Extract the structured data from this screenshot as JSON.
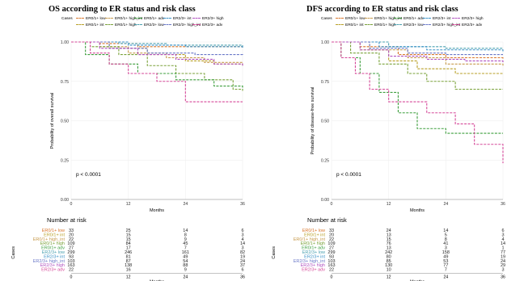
{
  "legend_prefix": "Cases",
  "groups": [
    {
      "name": "ER0/1+ low",
      "color": "#d9772c"
    },
    {
      "name": "ER0/1+ int",
      "color": "#b9a028"
    },
    {
      "name": "ER0/1+ high_int",
      "color": "#c79a4c"
    },
    {
      "name": "ER0/1+ high",
      "color": "#7aa23a"
    },
    {
      "name": "ER0/1+ adv",
      "color": "#3f9f3f"
    },
    {
      "name": "ER2/3+ low",
      "color": "#4aa0b0"
    },
    {
      "name": "ER2/3+ int",
      "color": "#3a92c8"
    },
    {
      "name": "ER2/3+ high_int",
      "color": "#6a78c8"
    },
    {
      "name": "ER2/3+ high",
      "color": "#b052c0"
    },
    {
      "name": "ER2/3+ adv",
      "color": "#d64a9a"
    }
  ],
  "chart_data": [
    {
      "type": "line",
      "title": "OS according to ER status and risk  class",
      "xlabel": "Months",
      "ylabel": "Probability of overall survival",
      "xlim": [
        0,
        36
      ],
      "ylim": [
        0,
        1
      ],
      "x_ticks": [
        "0",
        "12",
        "24",
        "36"
      ],
      "y_ticks": [
        "0.00",
        "0.25",
        "0.50",
        "0.75",
        "1.00"
      ],
      "annotation": "p < 0.0001",
      "legend_labels": [
        "ER0/1+ low",
        "ER0/1+ int",
        "ER0/1+ high_int",
        "ER0/1+ high",
        "ER0/1+ adv",
        "ER2/3+ low",
        "ER2/3+ int",
        "ER2/3+ high_int",
        "ER2/3+ high",
        "ER2/3+ adv"
      ],
      "series": [
        {
          "name": "ER0/1+ low",
          "x": [
            0,
            6,
            14,
            36
          ],
          "y": [
            1,
            0.99,
            0.97,
            0.96
          ]
        },
        {
          "name": "ER0/1+ int",
          "x": [
            0,
            8,
            16,
            24,
            30,
            36
          ],
          "y": [
            1,
            0.96,
            0.92,
            0.88,
            0.86,
            0.86
          ]
        },
        {
          "name": "ER0/1+ high_int",
          "x": [
            0,
            6,
            12,
            20,
            28,
            36
          ],
          "y": [
            1,
            0.97,
            0.93,
            0.9,
            0.87,
            0.85
          ]
        },
        {
          "name": "ER0/1+ high",
          "x": [
            0,
            4,
            10,
            16,
            22,
            28,
            34,
            36
          ],
          "y": [
            1,
            0.97,
            0.92,
            0.85,
            0.8,
            0.76,
            0.7,
            0.69
          ]
        },
        {
          "name": "ER0/1+ adv",
          "x": [
            0,
            3,
            8,
            14,
            22,
            30,
            36
          ],
          "y": [
            1,
            0.92,
            0.86,
            0.8,
            0.76,
            0.72,
            0.7
          ]
        },
        {
          "name": "ER2/3+ low",
          "x": [
            0,
            10,
            20,
            36
          ],
          "y": [
            1,
            0.99,
            0.98,
            0.97
          ]
        },
        {
          "name": "ER2/3+ int",
          "x": [
            0,
            12,
            24,
            36
          ],
          "y": [
            1,
            0.98,
            0.97,
            0.96
          ]
        },
        {
          "name": "ER2/3+ high_int",
          "x": [
            0,
            8,
            16,
            26,
            36
          ],
          "y": [
            1,
            0.96,
            0.93,
            0.92,
            0.91
          ]
        },
        {
          "name": "ER2/3+ high",
          "x": [
            0,
            6,
            14,
            22,
            30,
            36
          ],
          "y": [
            1,
            0.96,
            0.92,
            0.89,
            0.86,
            0.85
          ]
        },
        {
          "name": "ER2/3+ adv",
          "x": [
            0,
            4,
            8,
            12,
            18,
            24,
            36
          ],
          "y": [
            1,
            0.93,
            0.86,
            0.8,
            0.75,
            0.62,
            0.62
          ]
        }
      ],
      "number_at_risk": {
        "title": "Number at risk",
        "row_label": "Cases",
        "x": [
          0,
          12,
          24,
          36
        ],
        "rows": [
          {
            "label": "ER0/1+ low",
            "values": [
              "33",
              "25",
              "14",
              "6"
            ]
          },
          {
            "label": "ER0/1+ int",
            "values": [
              "20",
              "15",
              "8",
              "3"
            ]
          },
          {
            "label": "ER0/1+ high_int",
            "values": [
              "22",
              "15",
              "9",
              "4"
            ]
          },
          {
            "label": "ER0/1+ high",
            "values": [
              "109",
              "84",
              "45",
              "14"
            ]
          },
          {
            "label": "ER0/1+ adv",
            "values": [
              "27",
              "17",
              "7",
              "3"
            ]
          },
          {
            "label": "ER2/3+ low",
            "values": [
              "299",
              "246",
              "161",
              "82"
            ]
          },
          {
            "label": "ER2/3+ int",
            "values": [
              "93",
              "81",
              "49",
              "19"
            ]
          },
          {
            "label": "ER2/3+ high_int",
            "values": [
              "103",
              "87",
              "54",
              "24"
            ]
          },
          {
            "label": "ER2/3+ high",
            "values": [
              "163",
              "138",
              "88",
              "37"
            ]
          },
          {
            "label": "ER2/3+ adv",
            "values": [
              "22",
              "16",
              "9",
              "6"
            ]
          }
        ]
      }
    },
    {
      "type": "line",
      "title": "DFS according to ER status and risk  class",
      "xlabel": "Months",
      "ylabel": "Probability of disease-free survival",
      "xlim": [
        0,
        36
      ],
      "ylim": [
        0,
        1
      ],
      "x_ticks": [
        "0",
        "12",
        "24",
        "36"
      ],
      "y_ticks": [
        "0.00",
        "0.25",
        "0.50",
        "0.75",
        "1.00"
      ],
      "annotation": "p < 0.0001",
      "legend_labels": [
        "ER0/1+ low",
        "ER0/1+ int",
        "ER0/1+ high_int",
        "ER0/1+ high",
        "ER0/1+ adv",
        "ER2/3+ low",
        "ER2/3+ int",
        "ER2/3+ high_int",
        "ER2/3+ high",
        "ER2/3+ adv"
      ],
      "series": [
        {
          "name": "ER0/1+ low",
          "x": [
            0,
            6,
            14,
            24,
            36
          ],
          "y": [
            1,
            0.97,
            0.92,
            0.9,
            0.89
          ]
        },
        {
          "name": "ER0/1+ int",
          "x": [
            0,
            6,
            12,
            18,
            26,
            36
          ],
          "y": [
            1,
            0.95,
            0.88,
            0.83,
            0.8,
            0.8
          ]
        },
        {
          "name": "ER0/1+ high_int",
          "x": [
            0,
            8,
            16,
            24,
            36
          ],
          "y": [
            1,
            0.95,
            0.9,
            0.86,
            0.85
          ]
        },
        {
          "name": "ER0/1+ high",
          "x": [
            0,
            4,
            10,
            16,
            20,
            26,
            36
          ],
          "y": [
            1,
            0.93,
            0.86,
            0.8,
            0.75,
            0.7,
            0.7
          ]
        },
        {
          "name": "ER0/1+ adv",
          "x": [
            0,
            2,
            6,
            10,
            14,
            18,
            24,
            36
          ],
          "y": [
            1,
            0.9,
            0.8,
            0.68,
            0.55,
            0.45,
            0.42,
            0.42
          ]
        },
        {
          "name": "ER2/3+ low",
          "x": [
            0,
            12,
            24,
            36
          ],
          "y": [
            1,
            0.97,
            0.96,
            0.96
          ]
        },
        {
          "name": "ER2/3+ int",
          "x": [
            0,
            10,
            20,
            36
          ],
          "y": [
            1,
            0.97,
            0.95,
            0.94
          ]
        },
        {
          "name": "ER2/3+ high_int",
          "x": [
            0,
            8,
            16,
            24,
            36
          ],
          "y": [
            1,
            0.96,
            0.93,
            0.92,
            0.92
          ]
        },
        {
          "name": "ER2/3+ high",
          "x": [
            0,
            6,
            12,
            20,
            28,
            36
          ],
          "y": [
            1,
            0.95,
            0.91,
            0.89,
            0.88,
            0.87
          ]
        },
        {
          "name": "ER2/3+ adv",
          "x": [
            0,
            2,
            5,
            8,
            12,
            20,
            26,
            30,
            34,
            36
          ],
          "y": [
            1,
            0.9,
            0.8,
            0.7,
            0.62,
            0.55,
            0.48,
            0.35,
            0.35,
            0.23
          ]
        }
      ],
      "number_at_risk": {
        "title": "Number at risk",
        "row_label": "Cases",
        "x": [
          0,
          12,
          24,
          36
        ],
        "rows": [
          {
            "label": "ER0/1+ low",
            "values": [
              "33",
              "24",
              "14",
              "6"
            ]
          },
          {
            "label": "ER0/1+ int",
            "values": [
              "20",
              "13",
              "5",
              "3"
            ]
          },
          {
            "label": "ER0/1+ high_int",
            "values": [
              "22",
              "15",
              "8",
              "4"
            ]
          },
          {
            "label": "ER0/1+ high",
            "values": [
              "109",
              "76",
              "41",
              "14"
            ]
          },
          {
            "label": "ER0/1+ adv",
            "values": [
              "27",
              "13",
              "3",
              "1"
            ]
          },
          {
            "label": "ER2/3+ low",
            "values": [
              "299",
              "242",
              "158",
              "77"
            ]
          },
          {
            "label": "ER2/3+ int",
            "values": [
              "93",
              "80",
              "49",
              "19"
            ]
          },
          {
            "label": "ER2/3+ high_int",
            "values": [
              "103",
              "85",
              "53",
              "24"
            ]
          },
          {
            "label": "ER2/3+ high",
            "values": [
              "163",
              "130",
              "77",
              "29"
            ]
          },
          {
            "label": "ER2/3+ adv",
            "values": [
              "22",
              "10",
              "7",
              "3"
            ]
          }
        ]
      }
    }
  ]
}
